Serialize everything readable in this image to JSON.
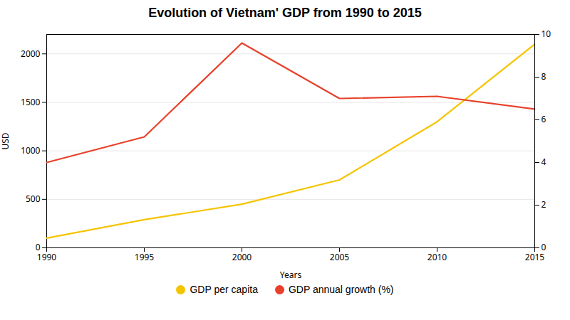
{
  "chart_data": {
    "type": "line",
    "title": "Evolution of Vietnam' GDP from 1990 to 2015",
    "xlabel": "Years",
    "ylabel": "USD",
    "x": [
      1990,
      1995,
      2000,
      2005,
      2010,
      2015
    ],
    "series": [
      {
        "name": "GDP per capita",
        "color": "#F5C400",
        "values": [
          100,
          290,
          450,
          700,
          1300,
          2100
        ]
      },
      {
        "name": "GDP annual growth (%)",
        "color": "#E8402A",
        "values": [
          4.0,
          5.2,
          9.6,
          7.0,
          7.1,
          6.5
        ],
        "axis": "y2"
      }
    ],
    "xlim": [
      1990,
      2015
    ],
    "xticks": [
      1990,
      1995,
      2000,
      2005,
      2010,
      2015
    ],
    "ylim": [
      0,
      2200
    ],
    "yticks": [
      0,
      500,
      1000,
      1500,
      2000
    ],
    "y2lim": [
      0,
      10
    ],
    "y2ticks": [
      0,
      2,
      4,
      6,
      8,
      10
    ],
    "grid": true,
    "legend": "bottom"
  }
}
